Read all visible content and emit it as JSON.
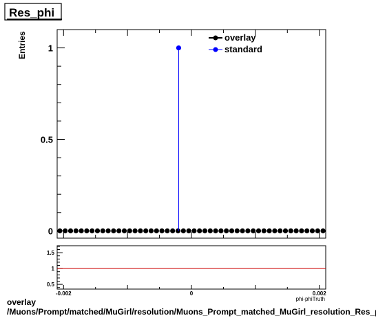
{
  "chart_data": [
    {
      "type": "scatter",
      "title": "Res_phi",
      "ylabel": "Entries",
      "xlabel": "phi-phiTruth",
      "xlim": [
        -0.0021,
        0.0021
      ],
      "ylim": [
        -0.04,
        1.1
      ],
      "yticks": [
        {
          "value": 0,
          "label": "0"
        },
        {
          "value": 0.5,
          "label": "0.5"
        },
        {
          "value": 1,
          "label": "1"
        }
      ],
      "legend_position": "top-right",
      "series": [
        {
          "name": "overlay",
          "color": "#000000",
          "marker": "circle",
          "bins": 50,
          "x_range": [
            -0.0021,
            0.0021
          ],
          "values": [
            0,
            0,
            0,
            0,
            0,
            0,
            0,
            0,
            0,
            0,
            0,
            0,
            0,
            0,
            0,
            0,
            0,
            0,
            0,
            0,
            0,
            0,
            0,
            0,
            0,
            0,
            0,
            0,
            0,
            0,
            0,
            0,
            0,
            0,
            0,
            0,
            0,
            0,
            0,
            0,
            0,
            0,
            0,
            0,
            0,
            0,
            0,
            0,
            0,
            0
          ]
        },
        {
          "name": "standard",
          "color": "#0000ff",
          "marker": "circle",
          "points": [
            {
              "x": -0.0002,
              "y": 1
            }
          ]
        }
      ]
    },
    {
      "type": "line",
      "title": "",
      "xlim": [
        -0.0021,
        0.0021
      ],
      "ylim": [
        0.35,
        1.72
      ],
      "yticks": [
        {
          "value": 0.5,
          "label": "0.5"
        },
        {
          "value": 1,
          "label": "1"
        },
        {
          "value": 1.5,
          "label": "1.5"
        }
      ],
      "xticks": [
        {
          "value": -0.002,
          "label": "-0.002"
        },
        {
          "value": 0,
          "label": "0"
        },
        {
          "value": 0.002,
          "label": "0.002"
        }
      ],
      "series": [
        {
          "color": "#cc0000",
          "x": [
            -0.0021,
            0.0021
          ],
          "y": [
            1,
            1
          ]
        }
      ]
    }
  ],
  "footer": {
    "line1": "overlay",
    "line2": "/Muons/Prompt/matched/MuGirl/resolution/Muons_Prompt_matched_MuGirl_resolution_Res_phi"
  }
}
